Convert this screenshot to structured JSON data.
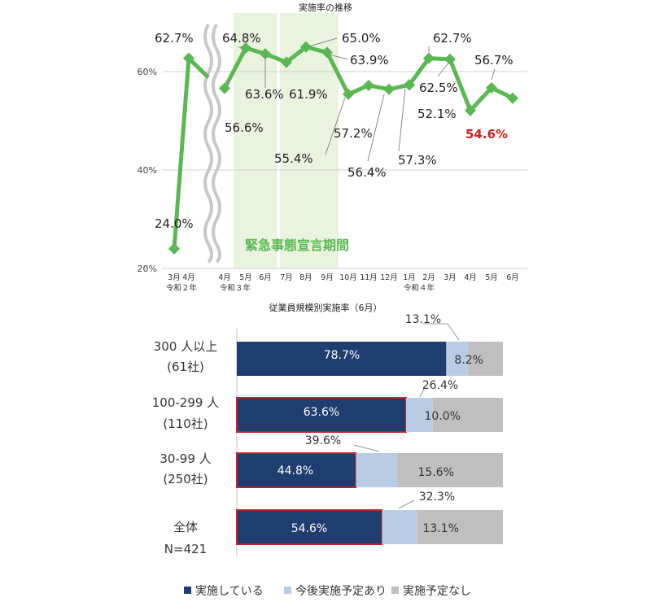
{
  "chart_data": [
    {
      "type": "line",
      "title": "実施率の推移",
      "y_ticks": [
        "20%",
        "40%",
        "60%"
      ],
      "ylim": [
        20,
        70
      ],
      "grid": true,
      "annotation": "緊急事態宣言期間",
      "shaded_periods": [
        [
          "5月",
          "6月"
        ],
        [
          "7月",
          "9月"
        ]
      ],
      "x": [
        "3月",
        "4月",
        "4月",
        "5月",
        "6月",
        "7月",
        "8月",
        "9月",
        "10月",
        "11月",
        "12月",
        "1月",
        "2月",
        "3月",
        "4月",
        "5月",
        "6月"
      ],
      "era_labels": [
        "令和２年",
        "令和３年",
        "令和４年"
      ],
      "labels": [
        "24.0%",
        "62.7%",
        "56.6%",
        "64.8%",
        "63.6%",
        "61.9%",
        "65.0%",
        "63.9%",
        "55.4%",
        "57.2%",
        "56.4%",
        "57.3%",
        "62.7%",
        "62.5%",
        "52.1%",
        "56.7%",
        "54.6%"
      ],
      "values": [
        24.0,
        62.7,
        56.6,
        64.8,
        63.6,
        61.9,
        65.0,
        63.9,
        55.4,
        57.2,
        56.4,
        57.3,
        62.7,
        62.5,
        52.1,
        56.7,
        54.6
      ],
      "line_color": "#5ab852",
      "highlight_last_color": "#d32020"
    },
    {
      "type": "bar",
      "stacked": true,
      "orientation": "horizontal",
      "title": "従業員規模別実施率（6月）",
      "categories": [
        {
          "line1": "300 人以上",
          "line2": "(61社)"
        },
        {
          "line1": "100-299 人",
          "line2": "(110社)"
        },
        {
          "line1": "30-99 人",
          "line2": "(250社)"
        },
        {
          "line1": "全体",
          "line2": "N=421"
        }
      ],
      "series": [
        {
          "name": "実施している",
          "color": "#1f3d6e",
          "values": [
            78.7,
            63.6,
            44.8,
            54.6
          ],
          "labels": [
            "78.7%",
            "63.6%",
            "44.8%",
            "54.6%"
          ]
        },
        {
          "name": "今後実施予定あり",
          "color": "#b8cce4",
          "values": [
            8.2,
            10.0,
            15.6,
            13.1
          ],
          "labels": [
            "8.2%",
            "10.0%",
            "15.6%",
            "13.1%"
          ]
        },
        {
          "name": "実施予定なし",
          "color": "#bfbfbf",
          "values": [
            13.1,
            26.4,
            39.6,
            32.3
          ],
          "labels": [
            "13.1%",
            "26.4%",
            "39.6%",
            "32.3%"
          ]
        }
      ],
      "xlim": [
        0,
        100
      ]
    }
  ]
}
